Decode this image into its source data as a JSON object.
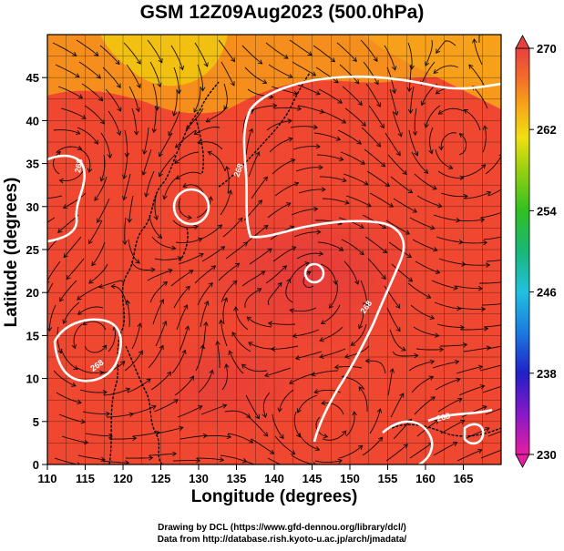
{
  "title": "GSM 12Z09Aug2023 (500.0hPa)",
  "chart_data": {
    "type": "heatmap",
    "title": "GSM 12Z09Aug2023 (500.0hPa)",
    "xlabel": "Longitude (degrees)",
    "ylabel": "Latitude  (degrees)",
    "xlim": [
      110,
      170
    ],
    "ylim": [
      0,
      50
    ],
    "x_ticks": [
      "110",
      "115",
      "120",
      "125",
      "130",
      "135",
      "140",
      "145",
      "150",
      "155",
      "160",
      "165"
    ],
    "y_ticks": [
      "0",
      "5",
      "10",
      "15",
      "20",
      "25",
      "30",
      "35",
      "40",
      "45"
    ],
    "colorbar": {
      "min": 230,
      "max": 270,
      "ticks": [
        "230",
        "238",
        "246",
        "254",
        "262",
        "270"
      ]
    },
    "grid": true,
    "field_labels": [
      "268",
      "268",
      "268",
      "268",
      "268"
    ]
  },
  "credits": {
    "line1": "Drawing by DCL (https://www.gfd-dennou.org/library/dcl/)",
    "line2": "Data from http://database.rish.kyoto-u.ac.jp/arch/jmadata/"
  },
  "colors": {
    "field_main": "#f04830",
    "field_warm_core": "#e8403a",
    "field_cool": "#f6921c",
    "field_coldest": "#f2c010",
    "contour": "#ffffff",
    "coast": "#000000"
  }
}
